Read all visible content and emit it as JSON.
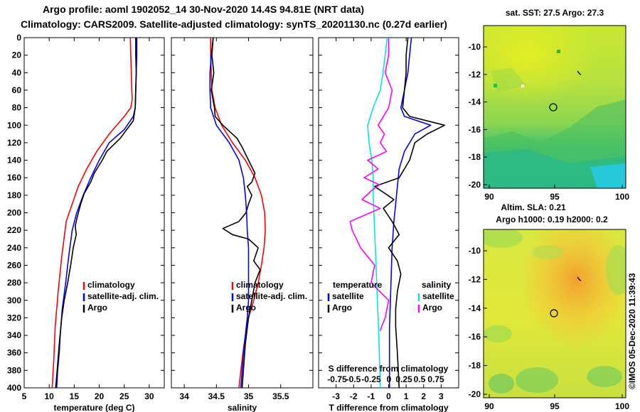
{
  "header": {
    "title_line1": "Argo profile: aoml 1902052_14 30-Nov-2020 14.4S 94.81E (NRT data)",
    "title_line2": "Climatology: CARS2009. Satellite-adjusted climatology: synTS_20201130.nc (0.27d earlier)"
  },
  "colors": {
    "climatology": "#ff0000",
    "satellite": "#0000ff",
    "argo": "#000000",
    "t_diff": "#00e5ee",
    "s_diff": "#ff00ff"
  },
  "depth_axis": {
    "ylim": [
      0,
      400
    ],
    "ticks": [
      "0",
      "20",
      "40",
      "60",
      "80",
      "100",
      "120",
      "140",
      "160",
      "180",
      "200",
      "220",
      "240",
      "260",
      "280",
      "300",
      "320",
      "340",
      "360",
      "380",
      "400"
    ]
  },
  "chart_data": [
    {
      "type": "line",
      "name": "temperature-profile",
      "xlabel": "temperature (deg C)",
      "xlim": [
        5,
        33
      ],
      "xticks": [
        5,
        10,
        15,
        20,
        25,
        30
      ],
      "xtick_labels": [
        "5",
        "10",
        "15",
        "20",
        "25",
        "30"
      ],
      "legend": [
        "climatology",
        "satellite-adj. clim.",
        "Argo"
      ],
      "legend_position": "lower-right",
      "series": [
        {
          "name": "climatology",
          "x": [
            26.2,
            26.3,
            26.4,
            26.5,
            26.6,
            26.3,
            25.0,
            22.0,
            19.5,
            17.5,
            15.8,
            14.6,
            13.4,
            12.5,
            11.8,
            11.2,
            10.9,
            10.6
          ],
          "y": [
            0,
            20,
            40,
            60,
            70,
            80,
            90,
            110,
            130,
            150,
            170,
            190,
            210,
            250,
            290,
            330,
            370,
            400
          ]
        },
        {
          "name": "satellite-adj. clim.",
          "x": [
            27.5,
            27.5,
            27.4,
            27.3,
            27.2,
            26.8,
            25.0,
            22.0,
            20.0,
            18.3,
            16.8,
            15.5,
            14.6,
            13.9,
            13.3,
            12.6,
            12.2,
            12.0,
            11.7,
            11.5
          ],
          "y": [
            0,
            20,
            40,
            60,
            80,
            90,
            105,
            120,
            140,
            160,
            180,
            200,
            220,
            250,
            280,
            310,
            340,
            360,
            380,
            400
          ]
        },
        {
          "name": "Argo",
          "x": [
            27.3,
            27.3,
            27.4,
            27.3,
            27.2,
            26.8,
            25.5,
            24.2,
            21.5,
            20.6,
            19.0,
            18.3,
            17.0,
            16.3,
            15.6,
            15.2,
            15.4,
            14.8,
            14.3,
            13.7,
            13.0,
            12.5,
            12.0,
            11.6,
            11.3
          ],
          "y": [
            0,
            20,
            40,
            60,
            80,
            95,
            105,
            115,
            130,
            140,
            155,
            165,
            178,
            190,
            205,
            215,
            225,
            240,
            260,
            280,
            300,
            320,
            350,
            380,
            400
          ]
        }
      ]
    },
    {
      "type": "line",
      "name": "salinity-profile",
      "xlabel": "salinity",
      "xlim": [
        33.8,
        36.0
      ],
      "xticks": [
        34,
        34.5,
        35,
        35.5
      ],
      "xtick_labels": [
        "34",
        "34.5",
        "35",
        "35.5"
      ],
      "legend": [
        "climatology",
        "satellite-adj. clim.",
        "Argo"
      ],
      "legend_position": "lower-right",
      "series": [
        {
          "name": "climatology",
          "x": [
            34.41,
            34.41,
            34.42,
            34.43,
            34.48,
            34.58,
            34.75,
            34.95,
            35.1,
            35.2,
            35.25,
            35.26,
            35.24,
            35.2,
            35.15,
            35.08,
            35.0,
            34.93,
            34.88,
            34.85
          ],
          "y": [
            0,
            20,
            40,
            60,
            80,
            100,
            120,
            140,
            160,
            180,
            200,
            220,
            240,
            260,
            280,
            300,
            320,
            350,
            380,
            400
          ]
        },
        {
          "name": "satellite-adj. clim.",
          "x": [
            34.45,
            34.42,
            34.4,
            34.4,
            34.41,
            34.5,
            34.7,
            34.85,
            34.92,
            34.95,
            34.97,
            34.98,
            35.0,
            35.0,
            35.0,
            35.0,
            34.98,
            34.95,
            34.92,
            34.9,
            34.88
          ],
          "y": [
            0,
            20,
            40,
            60,
            80,
            100,
            120,
            140,
            160,
            180,
            200,
            220,
            240,
            260,
            280,
            300,
            320,
            340,
            360,
            380,
            400
          ]
        },
        {
          "name": "Argo",
          "x": [
            34.45,
            34.43,
            34.46,
            34.42,
            34.47,
            34.48,
            34.6,
            34.82,
            34.9,
            35.0,
            35.1,
            35.05,
            34.98,
            35.05,
            35.0,
            34.96,
            34.85,
            34.6,
            34.75,
            35.0,
            35.15,
            35.08,
            35.18,
            35.1,
            35.05,
            35.0,
            34.95,
            34.92,
            34.9
          ],
          "y": [
            0,
            20,
            40,
            60,
            80,
            90,
            100,
            115,
            125,
            140,
            155,
            165,
            170,
            180,
            190,
            200,
            210,
            218,
            225,
            230,
            240,
            255,
            265,
            280,
            300,
            320,
            350,
            380,
            400
          ]
        }
      ]
    },
    {
      "type": "line",
      "name": "difference-profile",
      "xlabel": "T difference from climatology",
      "xlim": [
        -4.0,
        4.0
      ],
      "xticks": [
        -3,
        -2,
        -1,
        0,
        1,
        2,
        3
      ],
      "xtick_labels": [
        "-3",
        "-2",
        "-1",
        "0",
        "1",
        "2",
        "3"
      ],
      "top_xlabel": "S difference from climatology",
      "top_tick_labels": [
        "-0.75",
        "-0.5",
        "-0.25",
        "0",
        "0.25",
        "0.5",
        "0.75"
      ],
      "legend_temperature_title": "temperature",
      "legend_salinity_title": "salinity",
      "legend_temperature": [
        "satellite",
        "Argo"
      ],
      "legend_salinity": [
        "satellite",
        "Argo"
      ],
      "series": [
        {
          "name": "T satellite-clim",
          "kind": "temperature",
          "x": [
            1.3,
            1.2,
            1.1,
            0.9,
            0.7,
            0.9,
            2.4,
            1.5,
            0.9,
            0.6,
            0.5,
            0.4,
            0.3,
            0.2,
            0.15,
            0.1,
            0.05,
            0.05,
            0.05,
            0.05
          ],
          "y": [
            0,
            20,
            40,
            60,
            80,
            90,
            100,
            110,
            130,
            150,
            170,
            190,
            210,
            240,
            270,
            300,
            330,
            360,
            380,
            400
          ]
        },
        {
          "name": "T Argo-clim",
          "kind": "temperature",
          "x": [
            1.1,
            1.0,
            1.0,
            0.9,
            0.8,
            1.2,
            3.2,
            2.2,
            1.5,
            1.2,
            0.6,
            -0.8,
            -0.2,
            0.3,
            -0.3,
            0.2,
            0.6,
            0.0,
            0.5,
            0.7,
            0.5,
            0.4,
            0.4,
            0.5,
            0.6
          ],
          "y": [
            0,
            20,
            40,
            60,
            80,
            90,
            100,
            110,
            120,
            140,
            160,
            170,
            178,
            185,
            195,
            210,
            225,
            240,
            255,
            270,
            290,
            310,
            330,
            360,
            400
          ]
        },
        {
          "name": "S satellite-clim",
          "kind": "salinity",
          "x": [
            -0.02,
            -0.05,
            -0.08,
            -0.12,
            -0.22,
            -0.3,
            -0.28,
            -0.24,
            -0.22,
            -0.22,
            -0.21,
            -0.2,
            -0.19,
            -0.18,
            -0.17,
            -0.16,
            -0.15,
            -0.14,
            -0.13,
            -0.12
          ],
          "y": [
            0,
            20,
            40,
            60,
            80,
            100,
            120,
            140,
            160,
            180,
            200,
            220,
            240,
            260,
            280,
            300,
            320,
            340,
            370,
            400
          ]
        },
        {
          "name": "S Argo-clim",
          "kind": "salinity",
          "x": [
            0.0,
            0.0,
            -0.05,
            0.05,
            0.0,
            -0.15,
            -0.06,
            -0.12,
            -0.03,
            -0.3,
            -0.15,
            -0.35,
            -0.13,
            -0.25,
            -0.38,
            -0.12,
            -0.55,
            -0.52,
            -0.4,
            -0.2,
            -0.25,
            0.0,
            -0.05,
            -0.1,
            -0.12
          ],
          "y": [
            0,
            20,
            40,
            60,
            80,
            100,
            110,
            120,
            130,
            140,
            150,
            160,
            168,
            175,
            185,
            195,
            210,
            220,
            240,
            260,
            280,
            300,
            320,
            330,
            335
          ]
        }
      ]
    },
    {
      "type": "heatmap",
      "name": "sst-map",
      "title": "sat. SST: 27.5 Argo: 27.3",
      "xticks": [
        "90",
        "95",
        "100"
      ],
      "yticks": [
        "-10",
        "-12",
        "-14",
        "-16",
        "-18",
        "-20"
      ],
      "profile_lon": 94.81,
      "profile_lat": -14.4
    },
    {
      "type": "heatmap",
      "name": "sla-map",
      "title_line1": "Altim. SLA: 0.21",
      "title_line2": "Argo h1000: 0.19 h2000: 0.2",
      "xticks": [
        "90",
        "95",
        "100"
      ],
      "yticks": [
        "-10",
        "-12",
        "-14",
        "-16",
        "-18",
        "-20"
      ],
      "profile_lon": 94.81,
      "profile_lat": -14.4
    }
  ],
  "credit": "©IMOS 05-Dec-2020 11:39:43"
}
